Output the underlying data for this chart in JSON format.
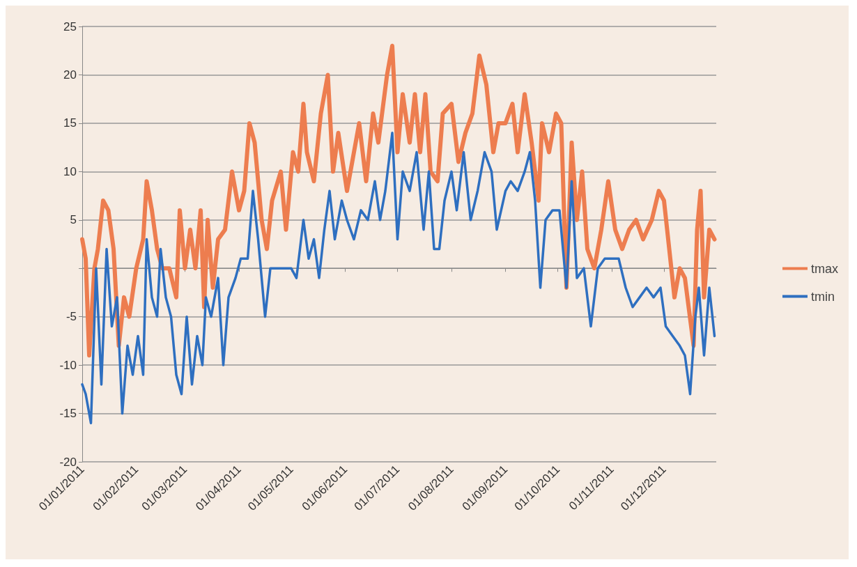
{
  "chart_data": {
    "type": "line",
    "xlim": [
      "2011-01-01",
      "2011-12-31"
    ],
    "xticks": [
      {
        "value": "2011-01-01",
        "label": "01/01/2011"
      },
      {
        "value": "2011-02-01",
        "label": "01/02/2011"
      },
      {
        "value": "2011-03-01",
        "label": "01/03/2011"
      },
      {
        "value": "2011-04-01",
        "label": "01/04/2011"
      },
      {
        "value": "2011-05-01",
        "label": "01/05/2011"
      },
      {
        "value": "2011-06-01",
        "label": "01/06/2011"
      },
      {
        "value": "2011-07-01",
        "label": "01/07/2011"
      },
      {
        "value": "2011-08-01",
        "label": "01/08/2011"
      },
      {
        "value": "2011-09-01",
        "label": "01/09/2011"
      },
      {
        "value": "2011-10-01",
        "label": "01/10/2011"
      },
      {
        "value": "2011-11-01",
        "label": "01/11/2011"
      },
      {
        "value": "2011-12-01",
        "label": "01/12/2011"
      }
    ],
    "ylim": [
      -20,
      25
    ],
    "yticks": [
      -20,
      -15,
      -10,
      -5,
      {
        "value": 0,
        "label": null
      },
      5,
      10,
      15,
      20,
      25
    ],
    "grid": "y",
    "legend": "right",
    "marker": "none",
    "line_style": "solid",
    "series": [
      {
        "name": "tmax",
        "color": "#ed7d4f",
        "x": [
          "2011-01-01",
          "2011-01-03",
          "2011-01-05",
          "2011-01-08",
          "2011-01-10",
          "2011-01-13",
          "2011-01-16",
          "2011-01-19",
          "2011-01-22",
          "2011-01-25",
          "2011-01-28",
          "2011-02-01",
          "2011-02-05",
          "2011-02-07",
          "2011-02-10",
          "2011-02-13",
          "2011-02-16",
          "2011-02-20",
          "2011-02-24",
          "2011-02-26",
          "2011-03-01",
          "2011-03-04",
          "2011-03-07",
          "2011-03-10",
          "2011-03-12",
          "2011-03-14",
          "2011-03-17",
          "2011-03-20",
          "2011-03-24",
          "2011-03-28",
          "2011-04-01",
          "2011-04-04",
          "2011-04-07",
          "2011-04-10",
          "2011-04-14",
          "2011-04-17",
          "2011-04-20",
          "2011-04-25",
          "2011-04-28",
          "2011-05-02",
          "2011-05-05",
          "2011-05-08",
          "2011-05-10",
          "2011-05-14",
          "2011-05-18",
          "2011-05-22",
          "2011-05-25",
          "2011-05-28",
          "2011-06-02",
          "2011-06-06",
          "2011-06-09",
          "2011-06-13",
          "2011-06-17",
          "2011-06-20",
          "2011-06-25",
          "2011-06-28",
          "2011-07-01",
          "2011-07-04",
          "2011-07-08",
          "2011-07-11",
          "2011-07-14",
          "2011-07-17",
          "2011-07-20",
          "2011-07-24",
          "2011-07-27",
          "2011-08-01",
          "2011-08-05",
          "2011-08-09",
          "2011-08-13",
          "2011-08-17",
          "2011-08-21",
          "2011-08-25",
          "2011-08-28",
          "2011-09-01",
          "2011-09-05",
          "2011-09-08",
          "2011-09-12",
          "2011-09-16",
          "2011-09-20",
          "2011-09-22",
          "2011-09-26",
          "2011-09-30",
          "2011-10-03",
          "2011-10-06",
          "2011-10-09",
          "2011-10-12",
          "2011-10-15",
          "2011-10-18",
          "2011-10-22",
          "2011-10-26",
          "2011-10-30",
          "2011-11-03",
          "2011-11-07",
          "2011-11-11",
          "2011-11-15",
          "2011-11-19",
          "2011-11-24",
          "2011-11-28",
          "2011-12-01",
          "2011-12-04",
          "2011-12-07",
          "2011-12-10",
          "2011-12-13",
          "2011-12-18",
          "2011-12-20",
          "2011-12-22",
          "2011-12-24",
          "2011-12-27",
          "2011-12-30"
        ],
        "values": [
          3,
          1,
          -9,
          0,
          2,
          7,
          6,
          2,
          -8,
          -3,
          -5,
          0,
          3,
          9,
          6,
          2,
          0,
          0,
          -3,
          6,
          0,
          4,
          0,
          6,
          -4,
          5,
          -2,
          3,
          4,
          10,
          6,
          8,
          15,
          13,
          5,
          2,
          7,
          10,
          4,
          12,
          10,
          17,
          12,
          9,
          16,
          20,
          10,
          14,
          8,
          12,
          15,
          9,
          16,
          13,
          20,
          23,
          12,
          18,
          13,
          18,
          12,
          18,
          10,
          9,
          16,
          17,
          11,
          14,
          16,
          22,
          19,
          12,
          15,
          15,
          17,
          12,
          18,
          13,
          7,
          15,
          12,
          16,
          15,
          -2,
          13,
          5,
          10,
          2,
          0,
          4,
          9,
          4,
          2,
          4,
          5,
          3,
          5,
          8,
          7,
          2,
          -3,
          0,
          -1,
          -8,
          4,
          8,
          -3,
          4,
          3
        ]
      },
      {
        "name": "tmin",
        "color": "#2e6fc0",
        "x": [
          "2011-01-01",
          "2011-01-03",
          "2011-01-06",
          "2011-01-09",
          "2011-01-12",
          "2011-01-15",
          "2011-01-18",
          "2011-01-21",
          "2011-01-24",
          "2011-01-27",
          "2011-01-30",
          "2011-02-02",
          "2011-02-05",
          "2011-02-07",
          "2011-02-10",
          "2011-02-13",
          "2011-02-15",
          "2011-02-18",
          "2011-02-21",
          "2011-02-24",
          "2011-02-27",
          "2011-03-02",
          "2011-03-05",
          "2011-03-08",
          "2011-03-11",
          "2011-03-13",
          "2011-03-16",
          "2011-03-20",
          "2011-03-23",
          "2011-03-26",
          "2011-03-30",
          "2011-04-02",
          "2011-04-06",
          "2011-04-09",
          "2011-04-12",
          "2011-04-16",
          "2011-04-19",
          "2011-04-22",
          "2011-04-27",
          "2011-05-01",
          "2011-05-04",
          "2011-05-08",
          "2011-05-11",
          "2011-05-14",
          "2011-05-17",
          "2011-05-20",
          "2011-05-23",
          "2011-05-26",
          "2011-05-30",
          "2011-06-02",
          "2011-06-06",
          "2011-06-10",
          "2011-06-14",
          "2011-06-18",
          "2011-06-21",
          "2011-06-24",
          "2011-06-28",
          "2011-07-01",
          "2011-07-04",
          "2011-07-08",
          "2011-07-12",
          "2011-07-16",
          "2011-07-19",
          "2011-07-22",
          "2011-07-25",
          "2011-07-28",
          "2011-08-01",
          "2011-08-04",
          "2011-08-08",
          "2011-08-12",
          "2011-08-16",
          "2011-08-20",
          "2011-08-24",
          "2011-08-27",
          "2011-09-01",
          "2011-09-04",
          "2011-09-08",
          "2011-09-12",
          "2011-09-15",
          "2011-09-18",
          "2011-09-21",
          "2011-09-24",
          "2011-09-28",
          "2011-10-02",
          "2011-10-06",
          "2011-10-09",
          "2011-10-12",
          "2011-10-16",
          "2011-10-20",
          "2011-10-24",
          "2011-10-28",
          "2011-11-01",
          "2011-11-05",
          "2011-11-09",
          "2011-11-13",
          "2011-11-17",
          "2011-11-21",
          "2011-11-25",
          "2011-11-29",
          "2011-12-02",
          "2011-12-06",
          "2011-12-10",
          "2011-12-13",
          "2011-12-16",
          "2011-12-19",
          "2011-12-21",
          "2011-12-24",
          "2011-12-27",
          "2011-12-30"
        ],
        "values": [
          -12,
          -13,
          -16,
          0,
          -12,
          2,
          -6,
          -3,
          -15,
          -8,
          -11,
          -7,
          -11,
          3,
          -3,
          -5,
          2,
          -3,
          -5,
          -11,
          -13,
          -5,
          -12,
          -7,
          -10,
          -3,
          -5,
          -1,
          -10,
          -3,
          -1,
          1,
          1,
          8,
          3,
          -5,
          0,
          0,
          0,
          0,
          -1,
          5,
          1,
          3,
          -1,
          4,
          8,
          3,
          7,
          5,
          3,
          6,
          5,
          9,
          5,
          8,
          14,
          3,
          10,
          8,
          12,
          4,
          10,
          2,
          2,
          7,
          10,
          6,
          12,
          5,
          8,
          12,
          10,
          4,
          8,
          9,
          8,
          10,
          12,
          7,
          -2,
          5,
          6,
          6,
          -2,
          9,
          -1,
          0,
          -6,
          0,
          1,
          1,
          1,
          -2,
          -4,
          -3,
          -2,
          -3,
          -2,
          -6,
          -7,
          -8,
          -9,
          -13,
          -5,
          -2,
          -9,
          -2,
          -7
        ]
      }
    ]
  }
}
